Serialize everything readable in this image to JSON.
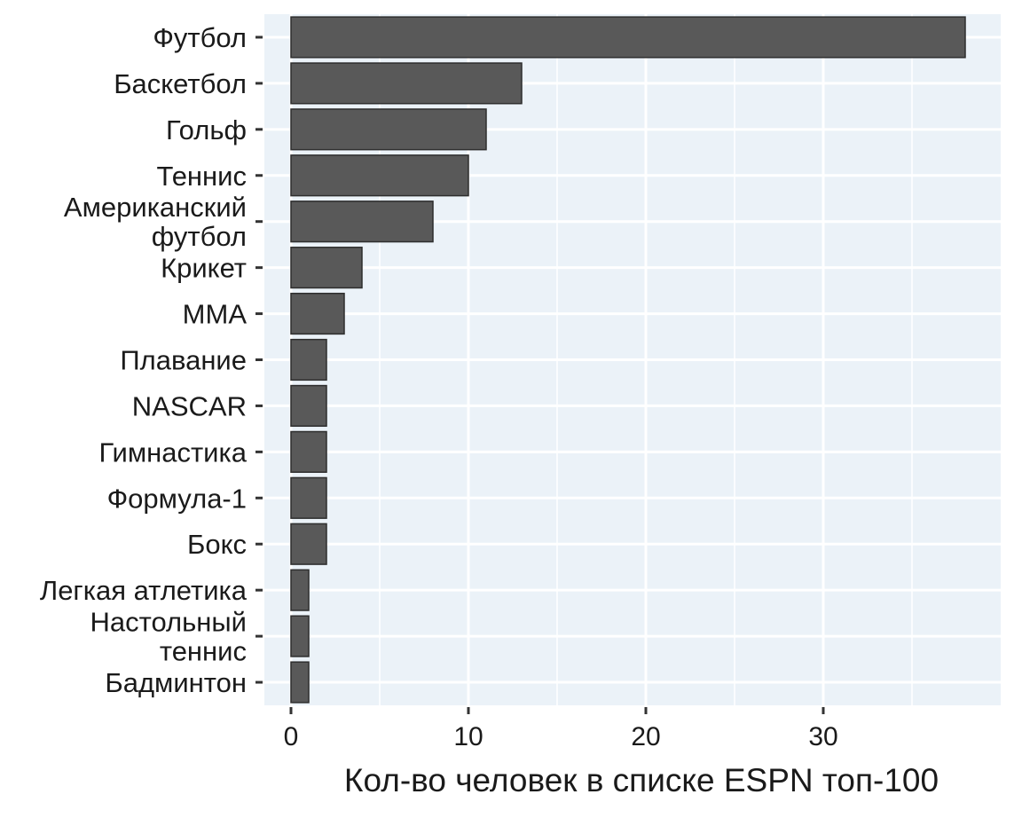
{
  "chart_data": {
    "type": "bar",
    "orientation": "horizontal",
    "title": "",
    "xlabel": "Кол-во человек в списке ESPN топ-100",
    "ylabel": "",
    "xlim": [
      -1.5,
      40
    ],
    "xticks": [
      0,
      10,
      20,
      30
    ],
    "grid": true,
    "categories": [
      "Футбол",
      "Баскетбол",
      "Гольф",
      "Теннис",
      "Американский\nфутбол",
      "Крикет",
      "MMA",
      "Плавание",
      "NASCAR",
      "Гимнастика",
      "Формула-1",
      "Бокс",
      "Легкая атлетика",
      "Настольный\nтеннис",
      "Бадминтон"
    ],
    "values": [
      38,
      13,
      11,
      10,
      8,
      4,
      3,
      2,
      2,
      2,
      2,
      2,
      1,
      1,
      1
    ],
    "colors": {
      "panel_background": "#ebf2f8",
      "gridline": "#ffffff",
      "bar_fill": "#595959",
      "bar_edge": "#2e2e2e",
      "tick_mark": "#333333",
      "text": "#1a1a1a"
    }
  }
}
